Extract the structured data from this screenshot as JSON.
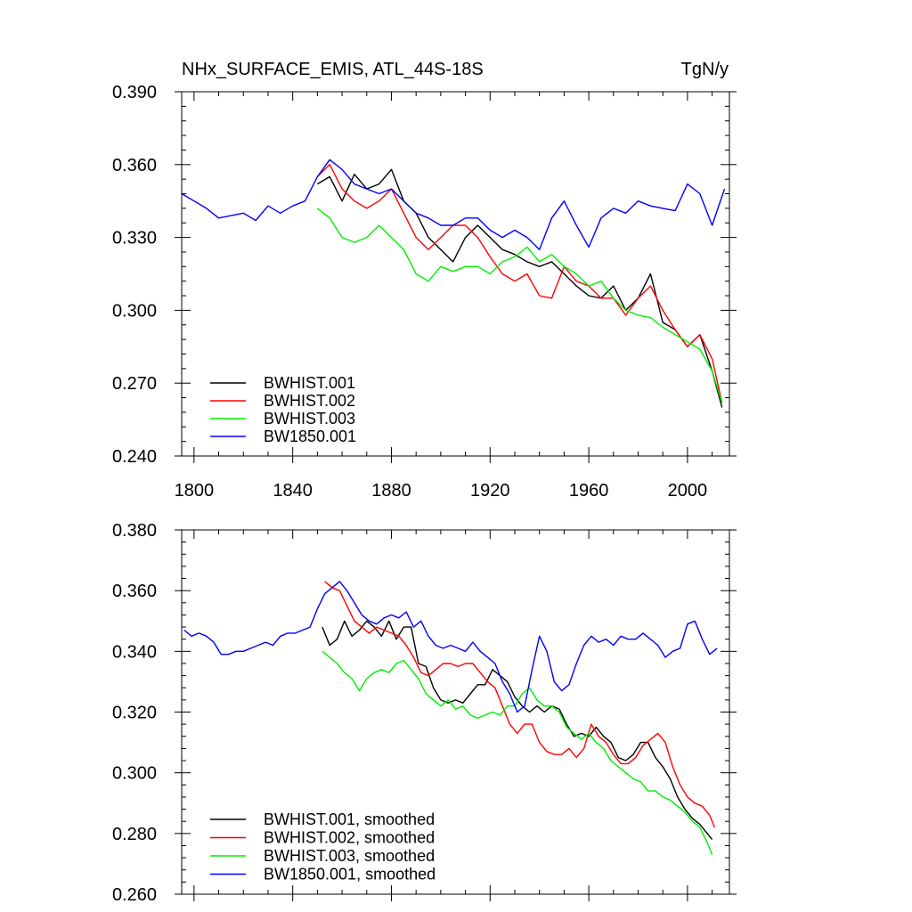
{
  "chart_data": [
    {
      "type": "line",
      "title": "NHx_SURFACE_EMIS, ATL_44S-18S",
      "units": "TgN/y",
      "xlim": [
        1795,
        2017
      ],
      "ylim": [
        0.24,
        0.39
      ],
      "xticks": [
        1800,
        1840,
        1880,
        1920,
        1960,
        2000
      ],
      "yticks": [
        0.24,
        0.27,
        0.3,
        0.33,
        0.36,
        0.39
      ],
      "ytick_labels": [
        "0.240",
        "0.270",
        "0.300",
        "0.330",
        "0.360",
        "0.390"
      ],
      "legend_position": "bottom-left",
      "series": [
        {
          "name": "BWHIST.001",
          "color": "#000000",
          "x": [
            1850,
            1855,
            1860,
            1865,
            1870,
            1875,
            1880,
            1885,
            1890,
            1895,
            1900,
            1905,
            1910,
            1915,
            1920,
            1925,
            1930,
            1935,
            1940,
            1945,
            1950,
            1955,
            1960,
            1965,
            1970,
            1975,
            1980,
            1985,
            1990,
            1995,
            2000,
            2005,
            2010,
            2014
          ],
          "y": [
            0.352,
            0.355,
            0.345,
            0.356,
            0.35,
            0.352,
            0.358,
            0.345,
            0.34,
            0.33,
            0.325,
            0.32,
            0.33,
            0.335,
            0.33,
            0.325,
            0.323,
            0.32,
            0.318,
            0.32,
            0.315,
            0.31,
            0.306,
            0.305,
            0.31,
            0.3,
            0.305,
            0.315,
            0.295,
            0.292,
            0.285,
            0.29,
            0.275,
            0.26
          ]
        },
        {
          "name": "BWHIST.002",
          "color": "#ff0000",
          "x": [
            1850,
            1855,
            1860,
            1865,
            1870,
            1875,
            1880,
            1885,
            1890,
            1895,
            1900,
            1905,
            1910,
            1915,
            1920,
            1925,
            1930,
            1935,
            1940,
            1945,
            1950,
            1955,
            1960,
            1965,
            1970,
            1975,
            1980,
            1985,
            1990,
            1995,
            2000,
            2005,
            2010,
            2014
          ],
          "y": [
            0.355,
            0.36,
            0.35,
            0.345,
            0.342,
            0.345,
            0.35,
            0.34,
            0.33,
            0.325,
            0.33,
            0.335,
            0.335,
            0.33,
            0.322,
            0.315,
            0.312,
            0.315,
            0.306,
            0.305,
            0.318,
            0.312,
            0.31,
            0.305,
            0.305,
            0.298,
            0.305,
            0.31,
            0.3,
            0.292,
            0.285,
            0.29,
            0.28,
            0.262
          ]
        },
        {
          "name": "BWHIST.003",
          "color": "#00ee00",
          "x": [
            1850,
            1855,
            1860,
            1865,
            1870,
            1875,
            1880,
            1885,
            1890,
            1895,
            1900,
            1905,
            1910,
            1915,
            1920,
            1925,
            1930,
            1935,
            1940,
            1945,
            1950,
            1955,
            1960,
            1965,
            1970,
            1975,
            1980,
            1985,
            1990,
            1995,
            2000,
            2005,
            2010,
            2014
          ],
          "y": [
            0.342,
            0.338,
            0.33,
            0.328,
            0.33,
            0.335,
            0.33,
            0.325,
            0.315,
            0.312,
            0.318,
            0.316,
            0.318,
            0.318,
            0.315,
            0.32,
            0.322,
            0.326,
            0.32,
            0.323,
            0.318,
            0.315,
            0.31,
            0.312,
            0.305,
            0.3,
            0.298,
            0.297,
            0.293,
            0.29,
            0.287,
            0.284,
            0.275,
            0.262
          ]
        },
        {
          "name": "BW1850.001",
          "color": "#0000ff",
          "x": [
            1795,
            1800,
            1805,
            1810,
            1815,
            1820,
            1825,
            1830,
            1835,
            1840,
            1845,
            1850,
            1855,
            1860,
            1865,
            1870,
            1875,
            1880,
            1885,
            1890,
            1895,
            1900,
            1905,
            1910,
            1915,
            1920,
            1925,
            1930,
            1935,
            1940,
            1945,
            1950,
            1955,
            1960,
            1965,
            1970,
            1975,
            1980,
            1985,
            1990,
            1995,
            2000,
            2005,
            2010,
            2015
          ],
          "y": [
            0.348,
            0.345,
            0.342,
            0.338,
            0.339,
            0.34,
            0.337,
            0.343,
            0.34,
            0.343,
            0.345,
            0.355,
            0.362,
            0.358,
            0.352,
            0.35,
            0.348,
            0.35,
            0.345,
            0.34,
            0.338,
            0.335,
            0.335,
            0.338,
            0.338,
            0.333,
            0.33,
            0.333,
            0.33,
            0.325,
            0.338,
            0.345,
            0.335,
            0.326,
            0.338,
            0.342,
            0.34,
            0.345,
            0.343,
            0.342,
            0.341,
            0.352,
            0.348,
            0.335,
            0.35
          ]
        }
      ]
    },
    {
      "type": "line",
      "xlim": [
        1795,
        2017
      ],
      "ylim": [
        0.26,
        0.38
      ],
      "xticks": [
        1800,
        1840,
        1880,
        1920,
        1960,
        2000
      ],
      "yticks": [
        0.26,
        0.28,
        0.3,
        0.32,
        0.34,
        0.36,
        0.38
      ],
      "ytick_labels": [
        "0.260",
        "0.280",
        "0.300",
        "0.320",
        "0.340",
        "0.360",
        "0.380"
      ],
      "legend_position": "bottom-left",
      "series": [
        {
          "name": "BWHIST.001, smoothed",
          "color": "#000000",
          "x": [
            1852,
            1855,
            1858,
            1861,
            1864,
            1867,
            1870,
            1873,
            1876,
            1879,
            1882,
            1885,
            1888,
            1891,
            1894,
            1897,
            1900,
            1903,
            1906,
            1909,
            1912,
            1915,
            1918,
            1921,
            1924,
            1927,
            1930,
            1933,
            1936,
            1939,
            1942,
            1945,
            1948,
            1951,
            1954,
            1957,
            1960,
            1963,
            1966,
            1969,
            1972,
            1975,
            1978,
            1981,
            1984,
            1987,
            1990,
            1993,
            1996,
            1999,
            2002,
            2005,
            2008,
            2010
          ],
          "y": [
            0.348,
            0.342,
            0.344,
            0.35,
            0.345,
            0.347,
            0.35,
            0.348,
            0.345,
            0.35,
            0.344,
            0.348,
            0.348,
            0.336,
            0.335,
            0.328,
            0.324,
            0.323,
            0.324,
            0.323,
            0.326,
            0.329,
            0.329,
            0.334,
            0.332,
            0.33,
            0.325,
            0.322,
            0.32,
            0.322,
            0.32,
            0.322,
            0.321,
            0.316,
            0.312,
            0.313,
            0.312,
            0.315,
            0.312,
            0.31,
            0.305,
            0.304,
            0.306,
            0.31,
            0.31,
            0.305,
            0.302,
            0.298,
            0.292,
            0.288,
            0.285,
            0.283,
            0.28,
            0.278
          ]
        },
        {
          "name": "BWHIST.002, smoothed",
          "color": "#ff0000",
          "x": [
            1853,
            1856,
            1859,
            1862,
            1865,
            1868,
            1871,
            1874,
            1877,
            1880,
            1883,
            1886,
            1889,
            1892,
            1895,
            1898,
            1901,
            1904,
            1907,
            1910,
            1913,
            1916,
            1919,
            1922,
            1925,
            1928,
            1931,
            1934,
            1937,
            1940,
            1943,
            1946,
            1949,
            1952,
            1955,
            1958,
            1961,
            1964,
            1967,
            1970,
            1973,
            1976,
            1979,
            1982,
            1985,
            1988,
            1991,
            1994,
            1997,
            2000,
            2003,
            2006,
            2009,
            2011
          ],
          "y": [
            0.363,
            0.361,
            0.36,
            0.355,
            0.35,
            0.348,
            0.346,
            0.348,
            0.347,
            0.346,
            0.345,
            0.342,
            0.338,
            0.333,
            0.332,
            0.334,
            0.336,
            0.336,
            0.335,
            0.336,
            0.336,
            0.333,
            0.33,
            0.328,
            0.322,
            0.316,
            0.313,
            0.316,
            0.316,
            0.31,
            0.307,
            0.306,
            0.306,
            0.308,
            0.305,
            0.308,
            0.316,
            0.312,
            0.31,
            0.306,
            0.303,
            0.303,
            0.305,
            0.309,
            0.311,
            0.313,
            0.31,
            0.302,
            0.296,
            0.292,
            0.29,
            0.289,
            0.286,
            0.282
          ]
        },
        {
          "name": "BWHIST.003, smoothed",
          "color": "#00ee00",
          "x": [
            1852,
            1855,
            1858,
            1861,
            1864,
            1867,
            1870,
            1873,
            1876,
            1879,
            1882,
            1885,
            1888,
            1891,
            1894,
            1897,
            1900,
            1903,
            1906,
            1909,
            1912,
            1915,
            1918,
            1921,
            1924,
            1927,
            1930,
            1933,
            1936,
            1939,
            1942,
            1945,
            1948,
            1951,
            1954,
            1957,
            1960,
            1963,
            1966,
            1969,
            1972,
            1975,
            1978,
            1981,
            1984,
            1987,
            1990,
            1993,
            1996,
            1999,
            2002,
            2005,
            2008,
            2010
          ],
          "y": [
            0.34,
            0.338,
            0.336,
            0.333,
            0.331,
            0.327,
            0.331,
            0.333,
            0.334,
            0.333,
            0.336,
            0.337,
            0.334,
            0.331,
            0.326,
            0.324,
            0.322,
            0.324,
            0.321,
            0.322,
            0.319,
            0.318,
            0.319,
            0.32,
            0.319,
            0.322,
            0.322,
            0.326,
            0.328,
            0.324,
            0.322,
            0.322,
            0.32,
            0.315,
            0.313,
            0.311,
            0.313,
            0.31,
            0.308,
            0.304,
            0.302,
            0.3,
            0.298,
            0.297,
            0.294,
            0.294,
            0.292,
            0.291,
            0.289,
            0.287,
            0.284,
            0.282,
            0.277,
            0.273
          ]
        },
        {
          "name": "BW1850.001, smoothed",
          "color": "#0000ff",
          "x": [
            1796,
            1799,
            1802,
            1805,
            1808,
            1811,
            1814,
            1817,
            1820,
            1823,
            1826,
            1829,
            1832,
            1835,
            1838,
            1841,
            1844,
            1847,
            1850,
            1853,
            1856,
            1859,
            1862,
            1865,
            1868,
            1871,
            1874,
            1877,
            1880,
            1883,
            1886,
            1889,
            1892,
            1895,
            1898,
            1901,
            1904,
            1907,
            1910,
            1913,
            1916,
            1919,
            1922,
            1925,
            1928,
            1931,
            1934,
            1937,
            1940,
            1943,
            1946,
            1949,
            1952,
            1955,
            1958,
            1961,
            1964,
            1967,
            1970,
            1973,
            1976,
            1979,
            1982,
            1985,
            1988,
            1991,
            1994,
            1997,
            2000,
            2003,
            2006,
            2009,
            2012
          ],
          "y": [
            0.347,
            0.345,
            0.346,
            0.345,
            0.343,
            0.339,
            0.339,
            0.34,
            0.34,
            0.341,
            0.342,
            0.343,
            0.342,
            0.345,
            0.346,
            0.346,
            0.347,
            0.348,
            0.354,
            0.359,
            0.361,
            0.363,
            0.36,
            0.356,
            0.352,
            0.35,
            0.349,
            0.351,
            0.352,
            0.351,
            0.353,
            0.348,
            0.35,
            0.345,
            0.342,
            0.341,
            0.342,
            0.341,
            0.34,
            0.343,
            0.34,
            0.338,
            0.336,
            0.33,
            0.326,
            0.32,
            0.322,
            0.334,
            0.345,
            0.34,
            0.33,
            0.327,
            0.329,
            0.336,
            0.342,
            0.345,
            0.343,
            0.344,
            0.342,
            0.345,
            0.344,
            0.344,
            0.346,
            0.344,
            0.342,
            0.338,
            0.34,
            0.341,
            0.349,
            0.35,
            0.344,
            0.339,
            0.341
          ]
        }
      ]
    }
  ]
}
